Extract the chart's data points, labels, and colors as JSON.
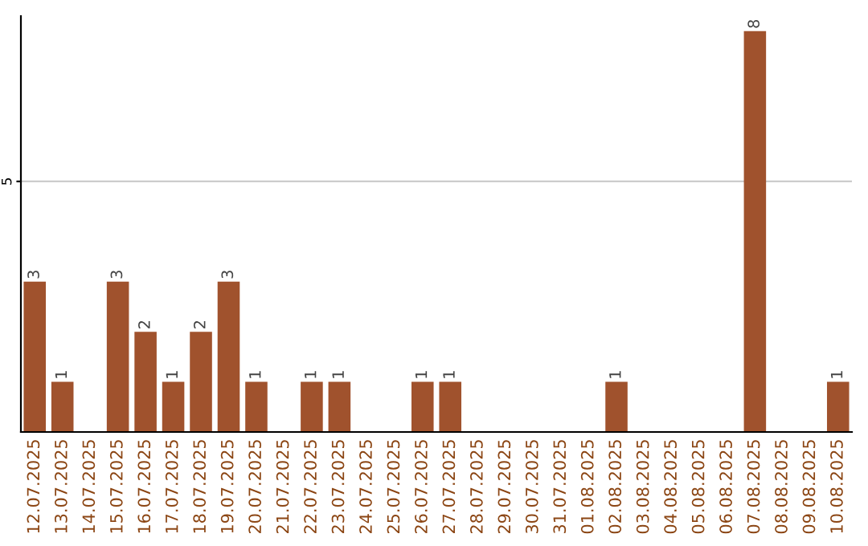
{
  "chart_data": {
    "type": "bar",
    "categories": [
      "12.07.2025",
      "13.07.2025",
      "14.07.2025",
      "15.07.2025",
      "16.07.2025",
      "17.07.2025",
      "18.07.2025",
      "19.07.2025",
      "20.07.2025",
      "21.07.2025",
      "22.07.2025",
      "23.07.2025",
      "24.07.2025",
      "25.07.2025",
      "26.07.2025",
      "27.07.2025",
      "28.07.2025",
      "29.07.2025",
      "30.07.2025",
      "31.07.2025",
      "01.08.2025",
      "02.08.2025",
      "03.08.2025",
      "04.08.2025",
      "05.08.2025",
      "06.08.2025",
      "07.08.2025",
      "08.08.2025",
      "09.08.2025",
      "10.08.2025"
    ],
    "values": [
      3,
      1,
      0,
      3,
      2,
      1,
      2,
      3,
      1,
      0,
      1,
      1,
      0,
      0,
      1,
      1,
      0,
      0,
      0,
      0,
      0,
      1,
      0,
      0,
      0,
      0,
      8,
      0,
      0,
      1
    ],
    "value_labels": [
      "3",
      "1",
      null,
      "3",
      "2",
      "1",
      "2",
      "3",
      "1",
      null,
      "1",
      "1",
      null,
      null,
      "1",
      "1",
      null,
      null,
      null,
      null,
      null,
      "1",
      null,
      null,
      null,
      null,
      "8",
      null,
      null,
      "1"
    ],
    "color": "#a0522d",
    "ylim": [
      0,
      8.3
    ],
    "yticks": [
      5
    ],
    "grid": "y"
  }
}
